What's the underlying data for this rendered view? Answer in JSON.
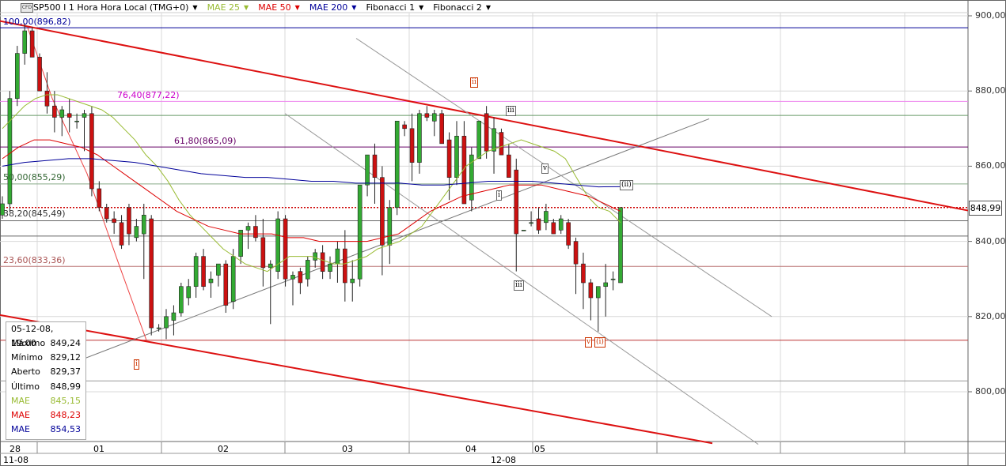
{
  "toolbar": {
    "symbol": "SP500 I 1 Hora Hora Local (TMG+0)",
    "indicators": [
      {
        "label": "MAE 25",
        "color": "#99bb33"
      },
      {
        "label": "MAE 50",
        "color": "#dd0000"
      },
      {
        "label": "MAE 200",
        "color": "#000099"
      },
      {
        "label": "Fibonacci 1",
        "color": "#000000"
      },
      {
        "label": "Fibonacci 2",
        "color": "#000000"
      }
    ]
  },
  "info_box": {
    "datetime": "05-12-08, 19:00",
    "rows": [
      {
        "label": "Máximo",
        "value": "849,24",
        "color": "#000000"
      },
      {
        "label": "Mínimo",
        "value": "829,12",
        "color": "#000000"
      },
      {
        "label": "Aberto",
        "value": "829,37",
        "color": "#000000"
      },
      {
        "label": "Último",
        "value": "848,99",
        "color": "#000000"
      },
      {
        "label": "MAE",
        "value": "845,15",
        "color": "#99bb33"
      },
      {
        "label": "MAE",
        "value": "848,23",
        "color": "#dd0000"
      },
      {
        "label": "MAE",
        "value": "854,53",
        "color": "#000099"
      }
    ]
  },
  "price_tag": "848,99",
  "fib_labels": [
    {
      "text": "100,00(896,82)",
      "color": "#000099",
      "value": 896.82
    },
    {
      "text": "76,40(877,22)",
      "color": "#cc00cc",
      "value": 877.22
    },
    {
      "text": "61,80(865,09)",
      "color": "#660066",
      "value": 865.09
    },
    {
      "text": "50,00(855,29)",
      "color": "#336633",
      "value": 855.29
    },
    {
      "text": "38,20(845,49)",
      "color": "#333333",
      "value": 845.49
    },
    {
      "text": "23,60(833,36)",
      "color": "#aa5555",
      "value": 833.36
    }
  ],
  "wave_labels": [
    {
      "text": "ii",
      "color": "#cc3300"
    },
    {
      "text": "iii",
      "color": "#333333"
    },
    {
      "text": "v",
      "color": "#333333"
    },
    {
      "text": "(ii)",
      "color": "#333333"
    },
    {
      "text": "i",
      "color": "#333333"
    },
    {
      "text": "iii",
      "color": "#333333"
    },
    {
      "text": "i",
      "color": "#cc3300"
    },
    {
      "text": "v",
      "color": "#cc3300"
    },
    {
      "text": "(i)",
      "color": "#cc3300"
    }
  ],
  "x_axis": {
    "ticks": [
      "28",
      "01",
      "02",
      "03",
      "04",
      "05"
    ],
    "months": [
      "11-08",
      "12-08"
    ]
  },
  "chart_data": {
    "type": "candlestick",
    "title": "SP500 I 1 Hora Hora Local (TMG+0)",
    "ylim": [
      786,
      902
    ],
    "yticks": [
      "800,00",
      "820,00",
      "840,00",
      "860,00",
      "880,00",
      "900,00"
    ],
    "candles": [
      [
        847,
        852,
        846,
        850
      ],
      [
        850,
        880,
        848,
        878
      ],
      [
        878,
        892,
        876,
        890
      ],
      [
        890,
        898,
        887,
        896
      ],
      [
        896,
        897,
        889,
        889
      ],
      [
        889,
        890,
        880,
        880
      ],
      [
        880,
        885,
        874,
        876
      ],
      [
        876,
        880,
        869,
        873
      ],
      [
        873,
        876,
        868,
        875
      ],
      [
        874,
        878,
        869,
        873
      ],
      [
        872,
        874,
        870,
        872
      ],
      [
        873,
        875,
        864,
        874
      ],
      [
        874,
        876,
        852,
        854
      ],
      [
        854,
        856,
        848,
        849
      ],
      [
        849,
        850,
        845,
        846
      ],
      [
        846,
        848,
        842,
        845
      ],
      [
        845,
        847,
        838,
        839
      ],
      [
        849,
        850,
        839,
        842
      ],
      [
        841,
        846,
        840,
        844
      ],
      [
        842,
        850,
        830,
        847
      ],
      [
        846,
        847,
        815,
        817
      ],
      [
        817,
        818,
        816,
        817
      ],
      [
        817,
        822,
        814,
        820
      ],
      [
        819,
        823,
        815,
        821
      ],
      [
        821,
        829,
        820,
        828
      ],
      [
        825,
        830,
        823,
        828
      ],
      [
        828,
        837,
        825,
        836
      ],
      [
        836,
        838,
        827,
        828
      ],
      [
        829,
        832,
        825,
        830
      ],
      [
        831,
        834,
        828,
        834
      ],
      [
        834,
        835,
        821,
        823
      ],
      [
        824,
        838,
        822,
        836
      ],
      [
        836,
        843,
        834,
        843
      ],
      [
        843,
        845,
        838,
        844
      ],
      [
        844,
        847,
        840,
        841
      ],
      [
        841,
        846,
        828,
        833
      ],
      [
        833,
        835,
        818,
        834
      ],
      [
        832,
        848,
        830,
        846
      ],
      [
        846,
        847,
        828,
        830
      ],
      [
        830,
        832,
        823,
        831
      ],
      [
        832,
        833,
        826,
        829
      ],
      [
        830,
        836,
        828,
        835
      ],
      [
        835,
        838,
        833,
        837
      ],
      [
        837,
        839,
        830,
        832
      ],
      [
        832,
        836,
        830,
        834
      ],
      [
        834,
        840,
        829,
        838
      ],
      [
        838,
        843,
        824,
        829
      ],
      [
        829,
        835,
        824,
        830
      ],
      [
        830,
        855,
        828,
        855
      ],
      [
        855,
        863,
        852,
        863
      ],
      [
        863,
        866,
        850,
        857
      ],
      [
        857,
        860,
        831,
        839
      ],
      [
        839,
        851,
        834,
        849
      ],
      [
        849,
        872,
        847,
        872
      ],
      [
        871,
        872,
        868,
        870
      ],
      [
        870,
        874,
        856,
        861
      ],
      [
        861,
        875,
        858,
        874
      ],
      [
        874,
        876,
        872,
        873
      ],
      [
        872,
        875,
        868,
        874
      ],
      [
        874,
        875,
        866,
        866
      ],
      [
        867,
        869,
        851,
        857
      ],
      [
        857,
        872,
        855,
        868
      ],
      [
        868,
        872,
        850,
        850
      ],
      [
        851,
        865,
        848,
        863
      ],
      [
        862,
        872,
        862,
        872
      ],
      [
        874,
        876,
        862,
        864
      ],
      [
        864,
        873,
        858,
        870
      ],
      [
        869,
        870,
        863,
        863
      ],
      [
        863,
        866,
        858,
        857
      ],
      [
        859,
        862,
        832,
        842
      ],
      [
        843,
        843,
        843,
        843
      ],
      [
        845,
        848,
        844,
        845
      ],
      [
        846,
        849,
        842,
        843
      ],
      [
        845,
        850,
        843,
        848
      ],
      [
        845,
        846,
        842,
        842
      ],
      [
        843,
        847,
        842,
        846
      ],
      [
        845,
        846,
        838,
        839
      ],
      [
        840,
        841,
        826,
        834
      ],
      [
        834,
        837,
        822,
        829
      ],
      [
        829,
        830,
        819,
        825
      ],
      [
        825,
        828,
        816,
        828
      ],
      [
        828,
        834,
        820,
        829
      ],
      [
        830,
        832,
        827,
        830
      ],
      [
        829,
        849,
        829,
        849
      ]
    ],
    "ma_series": [
      {
        "name": "MAE 25",
        "color": "#99bb33",
        "values": [
          870,
          873,
          876,
          878,
          879,
          879,
          878,
          877,
          876,
          875,
          873,
          870,
          867,
          863,
          860,
          856,
          851,
          847,
          844,
          841,
          838,
          836,
          834,
          833,
          832,
          834,
          836,
          836,
          836,
          835,
          834,
          834,
          835,
          836,
          838,
          839,
          840,
          842,
          844,
          848,
          852,
          856,
          860,
          862,
          864,
          865,
          866,
          867,
          866,
          865,
          864,
          862,
          857,
          852,
          849,
          848,
          845
        ]
      },
      {
        "name": "MAE 50",
        "color": "#dd0000",
        "values": [
          862,
          865,
          867,
          867,
          866,
          865,
          863,
          860,
          857,
          854,
          851,
          848,
          846,
          844,
          843,
          842,
          842,
          842,
          841,
          841,
          840,
          840,
          840,
          840,
          841,
          842,
          845,
          848,
          850,
          852,
          853,
          854,
          855,
          855,
          855,
          854,
          853,
          852,
          850,
          848
        ]
      },
      {
        "name": "MAE 200",
        "color": "#000099",
        "values": [
          860,
          861,
          861.5,
          862,
          862,
          861.5,
          861,
          860,
          859,
          858,
          857.5,
          857,
          857,
          856.5,
          856,
          856,
          855.5,
          855.5,
          855.5,
          855,
          855,
          855.5,
          856,
          856,
          856,
          855.5,
          855,
          854.5,
          854.53
        ]
      }
    ],
    "horizontal_levels": [
      {
        "value": 896.82,
        "color": "#000099"
      },
      {
        "value": 877.22,
        "color": "#ee88ee"
      },
      {
        "value": 865.09,
        "color": "#660066"
      },
      {
        "value": 855.29,
        "color": "#88aa88"
      },
      {
        "value": 845.49,
        "color": "#666666"
      },
      {
        "value": 841.4,
        "color": "#666666"
      },
      {
        "value": 833.36,
        "color": "#bb7777"
      },
      {
        "value": 813.7,
        "color": "#bb3333"
      },
      {
        "value": 848.99,
        "color": "#cc0000",
        "dashed": true
      },
      {
        "value": 873.5,
        "color": "#669966"
      },
      {
        "value": 802.9,
        "color": "#999999"
      }
    ]
  }
}
